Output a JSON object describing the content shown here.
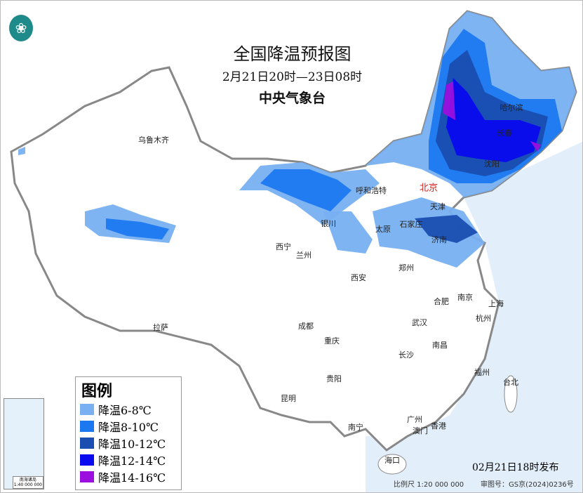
{
  "header": {
    "title": "全国降温预报图",
    "period": "2月21日20时—23日08时",
    "issuer": "中央气象台"
  },
  "logo": {
    "icon": "cma-logo"
  },
  "legend": {
    "title": "图例",
    "items": [
      {
        "label": "降温6-8℃",
        "color": "#78b0f2"
      },
      {
        "label": "降温8-10℃",
        "color": "#1c78f0"
      },
      {
        "label": "降温10-12℃",
        "color": "#1a4eb0"
      },
      {
        "label": "降温12-14℃",
        "color": "#0a0aee"
      },
      {
        "label": "降温14-16℃",
        "color": "#9b10de"
      }
    ]
  },
  "cities": [
    "乌鲁木齐",
    "哈尔滨",
    "长春",
    "沈阳",
    "北京",
    "呼和浩特",
    "天津",
    "石家庄",
    "太原",
    "银川",
    "济南",
    "西宁",
    "兰州",
    "郑州",
    "西安",
    "合肥",
    "南京",
    "上海",
    "武汉",
    "杭州",
    "成都",
    "重庆",
    "拉萨",
    "长沙",
    "南昌",
    "贵阳",
    "福州",
    "台北",
    "昆明",
    "南宁",
    "广州",
    "澳门",
    "香港",
    "海口"
  ],
  "capital_color": "#d42020",
  "inset": {
    "caption": "南海诸岛",
    "scale": "1:40 000 000"
  },
  "footer": {
    "issued": "02月21日18时发布",
    "scale": "比例尺 1:20 000 000",
    "review": "审图号：GS京(2024)0236号"
  }
}
